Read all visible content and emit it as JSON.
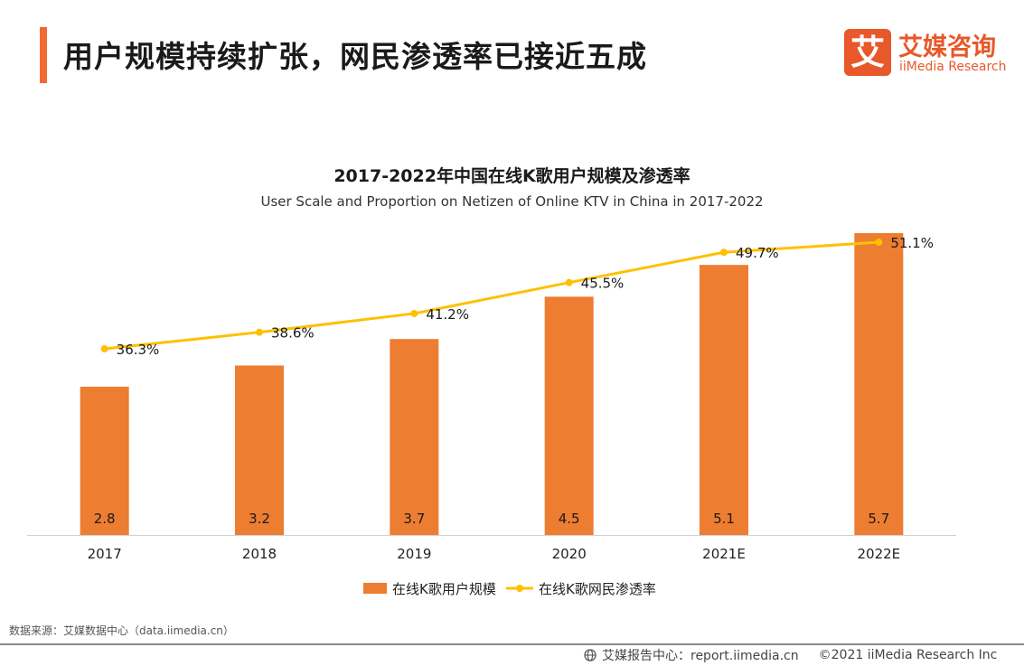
{
  "header": {
    "title": "用户规模持续扩张，网民渗透率已接近五成",
    "logo_cn": "艾媒咨询",
    "logo_en": "iiMedia Research",
    "logo_mark": "艾"
  },
  "chart_data": {
    "type": "bar+line",
    "title": "2017-2022年中国在线K歌用户规模及渗透率",
    "subtitle": "User Scale and Proportion on Netizen of Online KTV in China in 2017-2022",
    "categories": [
      "2017",
      "2018",
      "2019",
      "2020",
      "2021E",
      "2022E"
    ],
    "series": [
      {
        "name": "在线K歌用户规模",
        "type": "bar",
        "values": [
          2.8,
          3.2,
          3.7,
          4.5,
          5.1,
          5.7
        ],
        "labels": [
          "2.8",
          "3.2",
          "3.7",
          "4.5",
          "5.1",
          "5.7"
        ],
        "color": "#ed7d31"
      },
      {
        "name": "在线K歌网民渗透率",
        "type": "line",
        "values": [
          36.3,
          38.6,
          41.2,
          45.5,
          49.7,
          51.1
        ],
        "labels": [
          "36.3%",
          "38.6%",
          "41.2%",
          "45.5%",
          "49.7%",
          "51.1%"
        ],
        "color": "#ffc000"
      }
    ],
    "legend_position": "bottom"
  },
  "source": "数据来源：艾媒数据中心（data.iimedia.cn）",
  "footer": {
    "report": "艾媒报告中心：report.iimedia.cn",
    "copyright": "©2021  iiMedia Research  Inc"
  }
}
